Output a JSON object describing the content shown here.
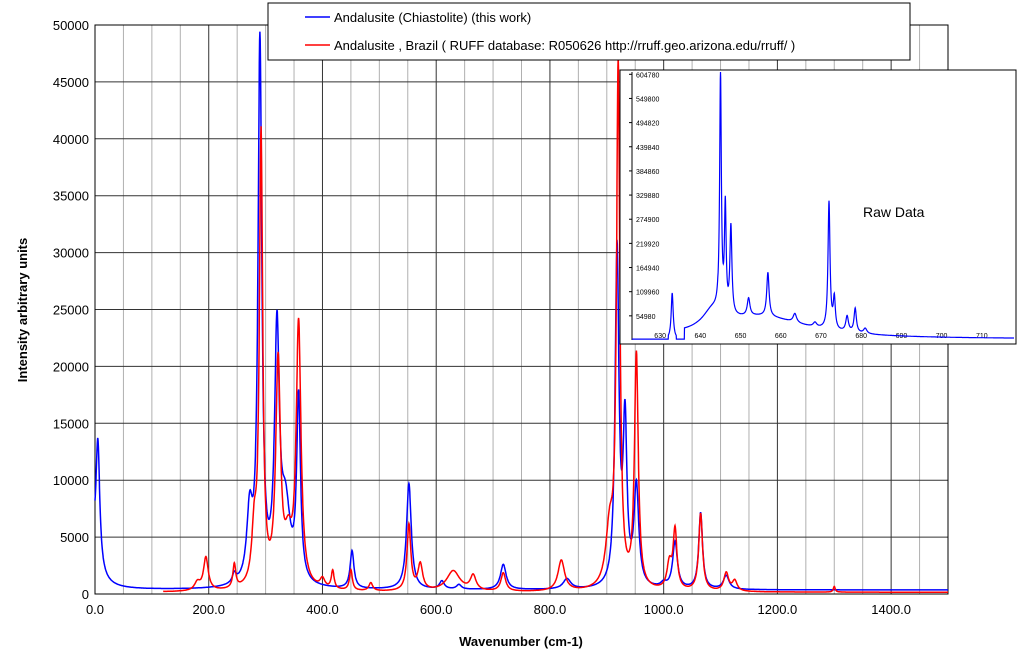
{
  "chart_data": {
    "type": "line",
    "xlabel": "Wavenumber (cm-1)",
    "ylabel": "Intensity arbitrary units",
    "xlim": [
      0,
      1500
    ],
    "ylim": [
      0,
      50000
    ],
    "xticks": [
      0,
      200,
      400,
      600,
      800,
      1000,
      1200,
      1400
    ],
    "xtick_labels": [
      "0.0",
      "200.0",
      "400.0",
      "600.0",
      "800.0",
      "1000.0",
      "1200.0",
      "1400.0"
    ],
    "yticks": [
      0,
      5000,
      10000,
      15000,
      20000,
      25000,
      30000,
      35000,
      40000,
      45000,
      50000
    ],
    "ytick_labels": [
      "0",
      "5000",
      "10000",
      "15000",
      "20000",
      "25000",
      "30000",
      "35000",
      "40000",
      "45000",
      "50000"
    ],
    "grid": true,
    "legend_placement": "top",
    "series": [
      {
        "name": "Andalusite (Chiastolite) (this work)",
        "color": "#0000ff",
        "start": 0,
        "baseline": 350,
        "peaks": [
          [
            5,
            11000,
            4
          ],
          [
            -10,
            6000,
            12
          ],
          [
            245,
            800,
            4
          ],
          [
            272,
            6000,
            6
          ],
          [
            290,
            47500,
            4
          ],
          [
            320,
            21500,
            5
          ],
          [
            335,
            6500,
            10
          ],
          [
            358,
            16000,
            4
          ],
          [
            452,
            3300,
            4
          ],
          [
            552,
            9300,
            5
          ],
          [
            610,
            700,
            5
          ],
          [
            640,
            400,
            5
          ],
          [
            718,
            2200,
            6
          ],
          [
            830,
            900,
            8
          ],
          [
            918,
            29500,
            4
          ],
          [
            932,
            14000,
            4
          ],
          [
            952,
            8700,
            5
          ],
          [
            1000,
            400,
            6
          ],
          [
            1020,
            4100,
            5
          ],
          [
            1065,
            6700,
            4
          ],
          [
            1110,
            1200,
            6
          ]
        ]
      },
      {
        "name": "Andalusite , Brazil ( RUFF database: R050626  http://rruff.geo.arizona.edu/rruff/ )",
        "color": "#ff0000",
        "start": 120,
        "baseline": 150,
        "peaks": [
          [
            180,
            700,
            6
          ],
          [
            195,
            2900,
            5
          ],
          [
            245,
            2100,
            3
          ],
          [
            280,
            4500,
            5
          ],
          [
            292,
            39500,
            3.5
          ],
          [
            322,
            19500,
            5
          ],
          [
            340,
            3500,
            8
          ],
          [
            358,
            23000,
            5
          ],
          [
            400,
            800,
            5
          ],
          [
            418,
            1600,
            3
          ],
          [
            450,
            1800,
            3
          ],
          [
            485,
            700,
            4
          ],
          [
            552,
            5800,
            4
          ],
          [
            572,
            2300,
            5
          ],
          [
            630,
            1800,
            14
          ],
          [
            665,
            1300,
            6
          ],
          [
            718,
            1600,
            5
          ],
          [
            820,
            2700,
            7
          ],
          [
            905,
            5000,
            8
          ],
          [
            920,
            45500,
            3.5
          ],
          [
            952,
            20500,
            4
          ],
          [
            1010,
            2200,
            5
          ],
          [
            1020,
            5200,
            4
          ],
          [
            1065,
            6800,
            4
          ],
          [
            1110,
            1600,
            5
          ],
          [
            1125,
            900,
            5
          ],
          [
            1300,
            500,
            2
          ]
        ]
      }
    ],
    "inset": {
      "title": "Raw Data",
      "color": "#0000ff",
      "xlim": [
        623,
        718
      ],
      "ylim": [
        0,
        610000
      ],
      "xticks": [
        630,
        640,
        650,
        660,
        670,
        680,
        690,
        700,
        710
      ],
      "xtick_labels": [
        "630",
        "640",
        "650",
        "660",
        "670",
        "680",
        "690",
        "700",
        "710"
      ],
      "yticks": [
        54980,
        109960,
        164940,
        219920,
        274900,
        329880,
        384860,
        439840,
        494820,
        549800,
        604780
      ],
      "ytick_labels": [
        "54980",
        "109960",
        "164940",
        "219920",
        "274900",
        "329880",
        "384860",
        "439840",
        "494820",
        "549800",
        "604780"
      ],
      "start": 636,
      "baseline": 2000,
      "peaks": [
        [
          633,
          105000,
          0.3
        ],
        [
          643,
          40000,
          3
        ],
        [
          645,
          540000,
          0.25
        ],
        [
          646.2,
          240000,
          0.25
        ],
        [
          647.6,
          200000,
          0.3
        ],
        [
          652,
          40000,
          0.4
        ],
        [
          656.8,
          100000,
          0.35
        ],
        [
          663.5,
          20000,
          0.5
        ],
        [
          668.5,
          10000,
          0.5
        ],
        [
          672,
          290000,
          0.3
        ],
        [
          673.3,
          70000,
          0.3
        ],
        [
          676.5,
          35000,
          0.4
        ],
        [
          678.5,
          55000,
          0.35
        ],
        [
          681,
          12000,
          0.5
        ],
        [
          655,
          50000,
          14
        ]
      ]
    }
  }
}
